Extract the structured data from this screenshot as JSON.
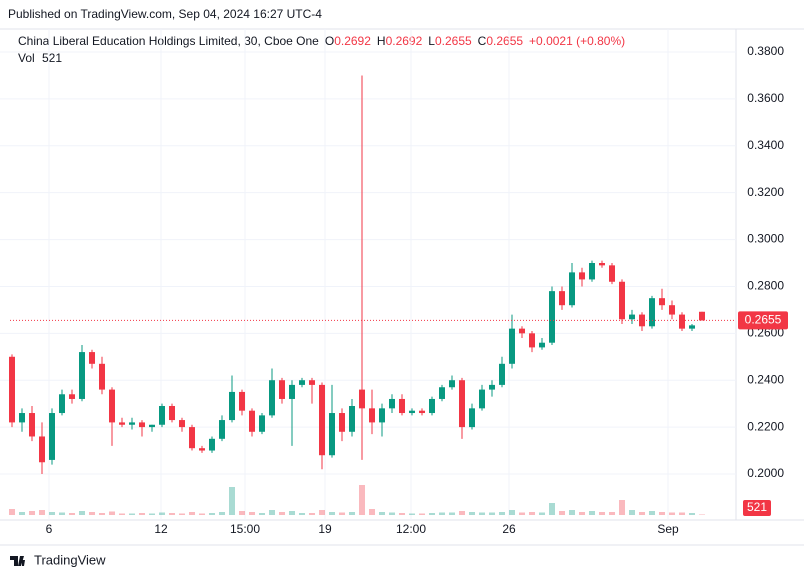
{
  "chart_data": {
    "type": "candlestick",
    "published": "Published on TradingView.com, Sep 04, 2024 16:27 UTC-4",
    "legend": {
      "symbol": "China Liberal Education Holdings Limited, 30, Cboe One",
      "open_label": "O",
      "open": 0.2692,
      "high_label": "H",
      "high": 0.2692,
      "low_label": "L",
      "low": 0.2655,
      "close_label": "C",
      "close": 0.2655,
      "change": "+0.0021 (+0.80%)",
      "volume_label": "Vol",
      "volume": 521
    },
    "brand": "TradingView",
    "up_color": "#089981",
    "down_color": "#f23645",
    "grid": true,
    "xlim": [
      -0.2,
      72.3
    ],
    "xticks": [
      {
        "value": 3.7,
        "label": "6"
      },
      {
        "value": 14.9,
        "label": "12"
      },
      {
        "value": 23.3,
        "label": "15:00"
      },
      {
        "value": 31.3,
        "label": "19"
      },
      {
        "value": 39.9,
        "label": "12:00"
      },
      {
        "value": 49.7,
        "label": "26"
      },
      {
        "value": 65.6,
        "label": "Sep"
      }
    ],
    "ylim": [
      0.1825,
      0.3894
    ],
    "yticks": [
      {
        "value": 0.2,
        "label": "0.2000"
      },
      {
        "value": 0.22,
        "label": "0.2200"
      },
      {
        "value": 0.24,
        "label": "0.2400"
      },
      {
        "value": 0.26,
        "label": "0.2600"
      },
      {
        "value": 0.28,
        "label": "0.2800"
      },
      {
        "value": 0.3,
        "label": "0.3000"
      },
      {
        "value": 0.32,
        "label": "0.3200"
      },
      {
        "value": 0.34,
        "label": "0.3400"
      },
      {
        "value": 0.36,
        "label": "0.3600"
      },
      {
        "value": 0.38,
        "label": "0.3800"
      }
    ],
    "volume_ylim": [
      0,
      36000
    ],
    "open": [
      0.25,
      0.222,
      0.226,
      0.216,
      0.206,
      0.226,
      0.234,
      0.232,
      0.252,
      0.247,
      0.236,
      0.222,
      0.221,
      0.222,
      0.22,
      0.221,
      0.229,
      0.223,
      0.22,
      0.211,
      0.21,
      0.215,
      0.223,
      0.235,
      0.227,
      0.218,
      0.225,
      0.24,
      0.232,
      0.238,
      0.24,
      0.238,
      0.208,
      0.226,
      0.218,
      0.236,
      0.228,
      0.222,
      0.228,
      0.232,
      0.226,
      0.227,
      0.226,
      0.232,
      0.237,
      0.24,
      0.22,
      0.228,
      0.236,
      0.238,
      0.247,
      0.262,
      0.26,
      0.254,
      0.256,
      0.278,
      0.272,
      0.286,
      0.283,
      0.29,
      0.289,
      0.282,
      0.266,
      0.268,
      0.263,
      0.275,
      0.272,
      0.268,
      0.262,
      0.2692
    ],
    "high": [
      0.251,
      0.228,
      0.229,
      0.222,
      0.228,
      0.236,
      0.236,
      0.255,
      0.253,
      0.25,
      0.237,
      0.224,
      0.224,
      0.223,
      0.221,
      0.23,
      0.23,
      0.224,
      0.221,
      0.212,
      0.216,
      0.225,
      0.242,
      0.236,
      0.228,
      0.226,
      0.245,
      0.241,
      0.24,
      0.241,
      0.241,
      0.239,
      0.238,
      0.228,
      0.232,
      0.37,
      0.236,
      0.23,
      0.234,
      0.234,
      0.228,
      0.228,
      0.233,
      0.238,
      0.242,
      0.241,
      0.23,
      0.238,
      0.24,
      0.25,
      0.268,
      0.263,
      0.261,
      0.258,
      0.28,
      0.28,
      0.29,
      0.288,
      0.291,
      0.291,
      0.29,
      0.283,
      0.27,
      0.269,
      0.276,
      0.279,
      0.274,
      0.269,
      0.264,
      0.2692
    ],
    "low": [
      0.22,
      0.218,
      0.214,
      0.2,
      0.204,
      0.225,
      0.23,
      0.231,
      0.245,
      0.234,
      0.212,
      0.22,
      0.219,
      0.216,
      0.218,
      0.22,
      0.222,
      0.218,
      0.21,
      0.209,
      0.209,
      0.214,
      0.222,
      0.225,
      0.216,
      0.217,
      0.224,
      0.23,
      0.212,
      0.237,
      0.23,
      0.202,
      0.207,
      0.214,
      0.216,
      0.206,
      0.217,
      0.216,
      0.226,
      0.225,
      0.225,
      0.225,
      0.225,
      0.231,
      0.236,
      0.215,
      0.219,
      0.227,
      0.233,
      0.237,
      0.245,
      0.258,
      0.252,
      0.253,
      0.255,
      0.27,
      0.271,
      0.28,
      0.282,
      0.288,
      0.281,
      0.264,
      0.264,
      0.261,
      0.262,
      0.27,
      0.266,
      0.261,
      0.261,
      0.2655
    ],
    "close": [
      0.222,
      0.226,
      0.216,
      0.205,
      0.226,
      0.234,
      0.232,
      0.252,
      0.247,
      0.236,
      0.222,
      0.221,
      0.222,
      0.22,
      0.221,
      0.229,
      0.223,
      0.22,
      0.211,
      0.21,
      0.215,
      0.223,
      0.235,
      0.227,
      0.218,
      0.225,
      0.24,
      0.232,
      0.238,
      0.24,
      0.238,
      0.208,
      0.226,
      0.218,
      0.229,
      0.228,
      0.222,
      0.228,
      0.232,
      0.226,
      0.227,
      0.226,
      0.232,
      0.237,
      0.24,
      0.22,
      0.228,
      0.236,
      0.238,
      0.247,
      0.262,
      0.26,
      0.254,
      0.256,
      0.278,
      0.272,
      0.286,
      0.283,
      0.29,
      0.289,
      0.282,
      0.266,
      0.268,
      0.263,
      0.275,
      0.272,
      0.268,
      0.262,
      0.2634,
      0.2655
    ],
    "volumes": [
      6000,
      3000,
      4000,
      5000,
      3000,
      2500,
      2000,
      4000,
      3000,
      2000,
      3500,
      1500,
      1500,
      2000,
      1500,
      2500,
      2000,
      1500,
      3000,
      1500,
      2000,
      3000,
      28000,
      4000,
      3000,
      2000,
      5000,
      3000,
      4000,
      2000,
      2000,
      5000,
      3000,
      2500,
      3000,
      30000,
      6000,
      3000,
      2500,
      2000,
      1500,
      1500,
      2000,
      2500,
      2500,
      4000,
      3000,
      2500,
      2500,
      3000,
      5000,
      2500,
      3000,
      2500,
      12000,
      4000,
      5000,
      3000,
      4000,
      3000,
      3000,
      15000,
      5000,
      3000,
      4000,
      3000,
      2500,
      2500,
      2000,
      521
    ]
  }
}
